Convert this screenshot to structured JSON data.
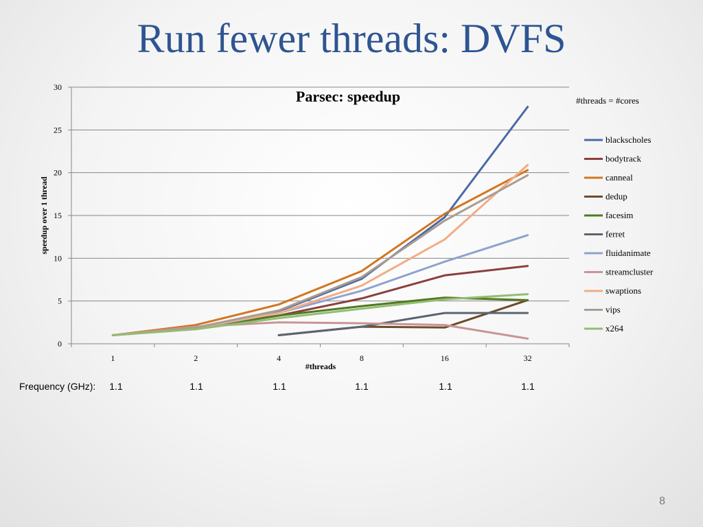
{
  "slide": {
    "title": "Run fewer threads: DVFS",
    "page_number": "8"
  },
  "frequency_row": {
    "label": "Frequency (GHz):",
    "values": [
      "1.1",
      "1.1",
      "1.1",
      "1.1",
      "1.1",
      "1.1"
    ]
  },
  "chart_data": {
    "type": "line",
    "title": "Parsec: speedup",
    "xlabel": "#threads",
    "ylabel": "speedup over 1 thread",
    "categories": [
      "1",
      "2",
      "4",
      "8",
      "16",
      "32"
    ],
    "ylim": [
      0,
      30
    ],
    "yticks": [
      0,
      5,
      10,
      15,
      20,
      25,
      30
    ],
    "grid": "horizontal",
    "legend_position": "right",
    "legend_title": "#threads = #cores",
    "series": [
      {
        "name": "blackscholes",
        "color": "#4a6aa5",
        "values": [
          1,
          1.9,
          3.8,
          7.6,
          14.8,
          27.7
        ]
      },
      {
        "name": "bodytrack",
        "color": "#8b3e3e",
        "values": [
          1,
          1.8,
          3.3,
          5.3,
          8.0,
          9.1
        ]
      },
      {
        "name": "canneal",
        "color": "#d2761f",
        "values": [
          1,
          2.2,
          4.6,
          8.5,
          15.2,
          20.3
        ]
      },
      {
        "name": "dedup",
        "color": "#6e4b2a",
        "values": [
          null,
          null,
          1.0,
          2.0,
          1.9,
          5.1
        ]
      },
      {
        "name": "facesim",
        "color": "#4f7a20",
        "values": [
          1,
          1.8,
          3.3,
          4.4,
          5.4,
          5.1
        ]
      },
      {
        "name": "ferret",
        "color": "#5d6470",
        "values": [
          null,
          null,
          1.0,
          2.0,
          3.6,
          3.6
        ]
      },
      {
        "name": "fluidanimate",
        "color": "#8fa2cf",
        "values": [
          1,
          1.8,
          3.6,
          6.2,
          9.6,
          12.7
        ]
      },
      {
        "name": "streamcluster",
        "color": "#c99595",
        "values": [
          1,
          2.0,
          2.5,
          2.4,
          2.2,
          0.6
        ]
      },
      {
        "name": "swaptions",
        "color": "#f2ac85",
        "values": [
          1,
          1.9,
          3.6,
          6.8,
          12.2,
          20.9
        ]
      },
      {
        "name": "vips",
        "color": "#a79d93",
        "values": [
          1,
          1.9,
          3.9,
          7.8,
          14.4,
          19.7
        ]
      },
      {
        "name": "x264",
        "color": "#94bc73",
        "values": [
          1,
          1.7,
          3.0,
          4.1,
          5.2,
          5.8
        ]
      }
    ]
  }
}
